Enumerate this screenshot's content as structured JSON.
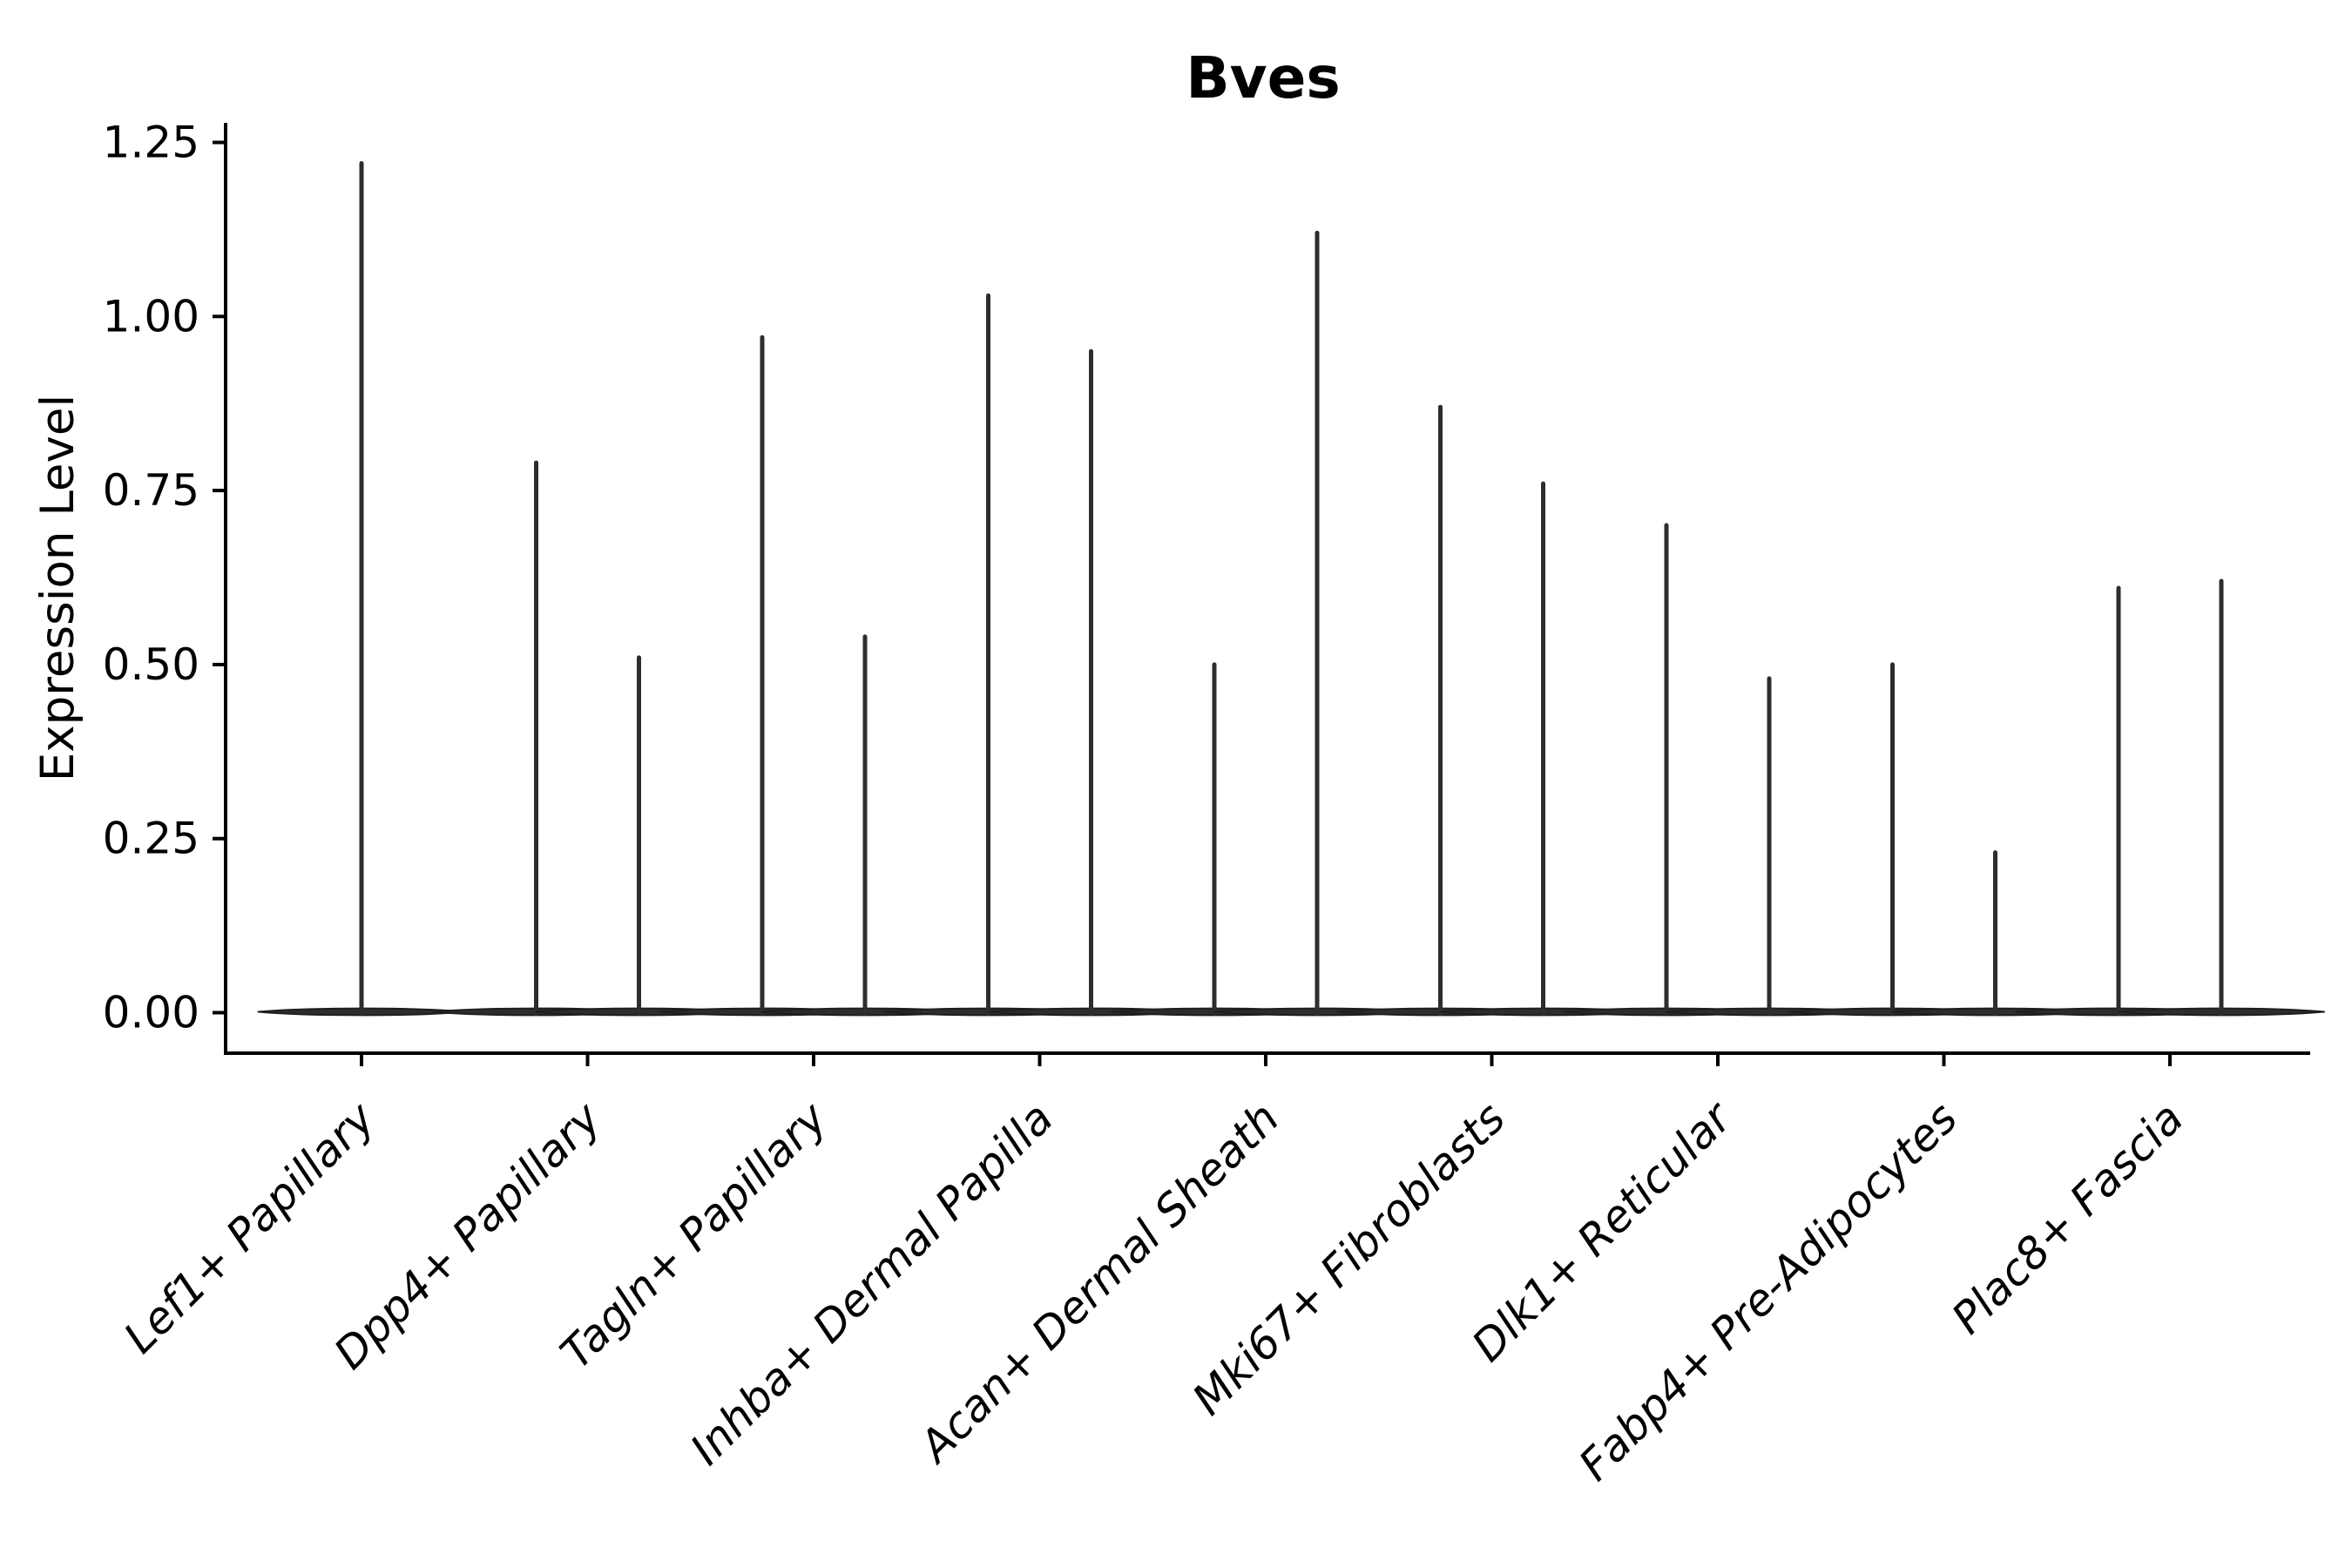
{
  "chart_data": {
    "type": "violin",
    "title": "Bves",
    "ylabel": "Expression Level",
    "xlabel": "",
    "grid": false,
    "legend": "none",
    "background_color": "#ffffff",
    "axis_color": "#000000",
    "violin_color": "#2d2d2d",
    "violin_edge_color": "#1f1f1f",
    "ylim": [
      -0.06,
      1.28
    ],
    "ytick_values": [
      0.0,
      0.25,
      0.5,
      0.75,
      1.0,
      1.25
    ],
    "ytick_labels": [
      "0.00",
      "0.25",
      "0.50",
      "0.75",
      "1.00",
      "1.25"
    ],
    "categories": [
      "Lef1+ Papillary",
      "Dpp4+ Papillary",
      "Tagln+ Papillary",
      "Inhba+ Dermal Papilla",
      "Acan+ Dermal Sheath",
      "Mki67+ Fibroblasts",
      "Dlk1+ Reticular",
      "Fabp4+ Pre-Adipocytes",
      "Plac8+ Fascia"
    ],
    "violins": [
      {
        "category": "Lef1+ Papillary",
        "maxima": [
          1.22
        ]
      },
      {
        "category": "Dpp4+ Papillary",
        "maxima": [
          0.79,
          0.51
        ]
      },
      {
        "category": "Tagln+ Papillary",
        "maxima": [
          0.97,
          0.54
        ]
      },
      {
        "category": "Inhba+ Dermal Papilla",
        "maxima": [
          1.03,
          0.95
        ]
      },
      {
        "category": "Acan+ Dermal Sheath",
        "maxima": [
          0.5,
          1.12
        ]
      },
      {
        "category": "Mki67+ Fibroblasts",
        "maxima": [
          0.87,
          0.76
        ]
      },
      {
        "category": "Dlk1+ Reticular",
        "maxima": [
          0.7,
          0.48
        ]
      },
      {
        "category": "Fabp4+ Pre-Adipocytes",
        "maxima": [
          0.5,
          0.23
        ]
      },
      {
        "category": "Plac8+ Fascia",
        "maxima": [
          0.61,
          0.62
        ]
      }
    ],
    "baseline_value": 0.0,
    "violins_per_category_note": "each violin is a flat density pancake at 0 with a thin spike to its maximum"
  }
}
